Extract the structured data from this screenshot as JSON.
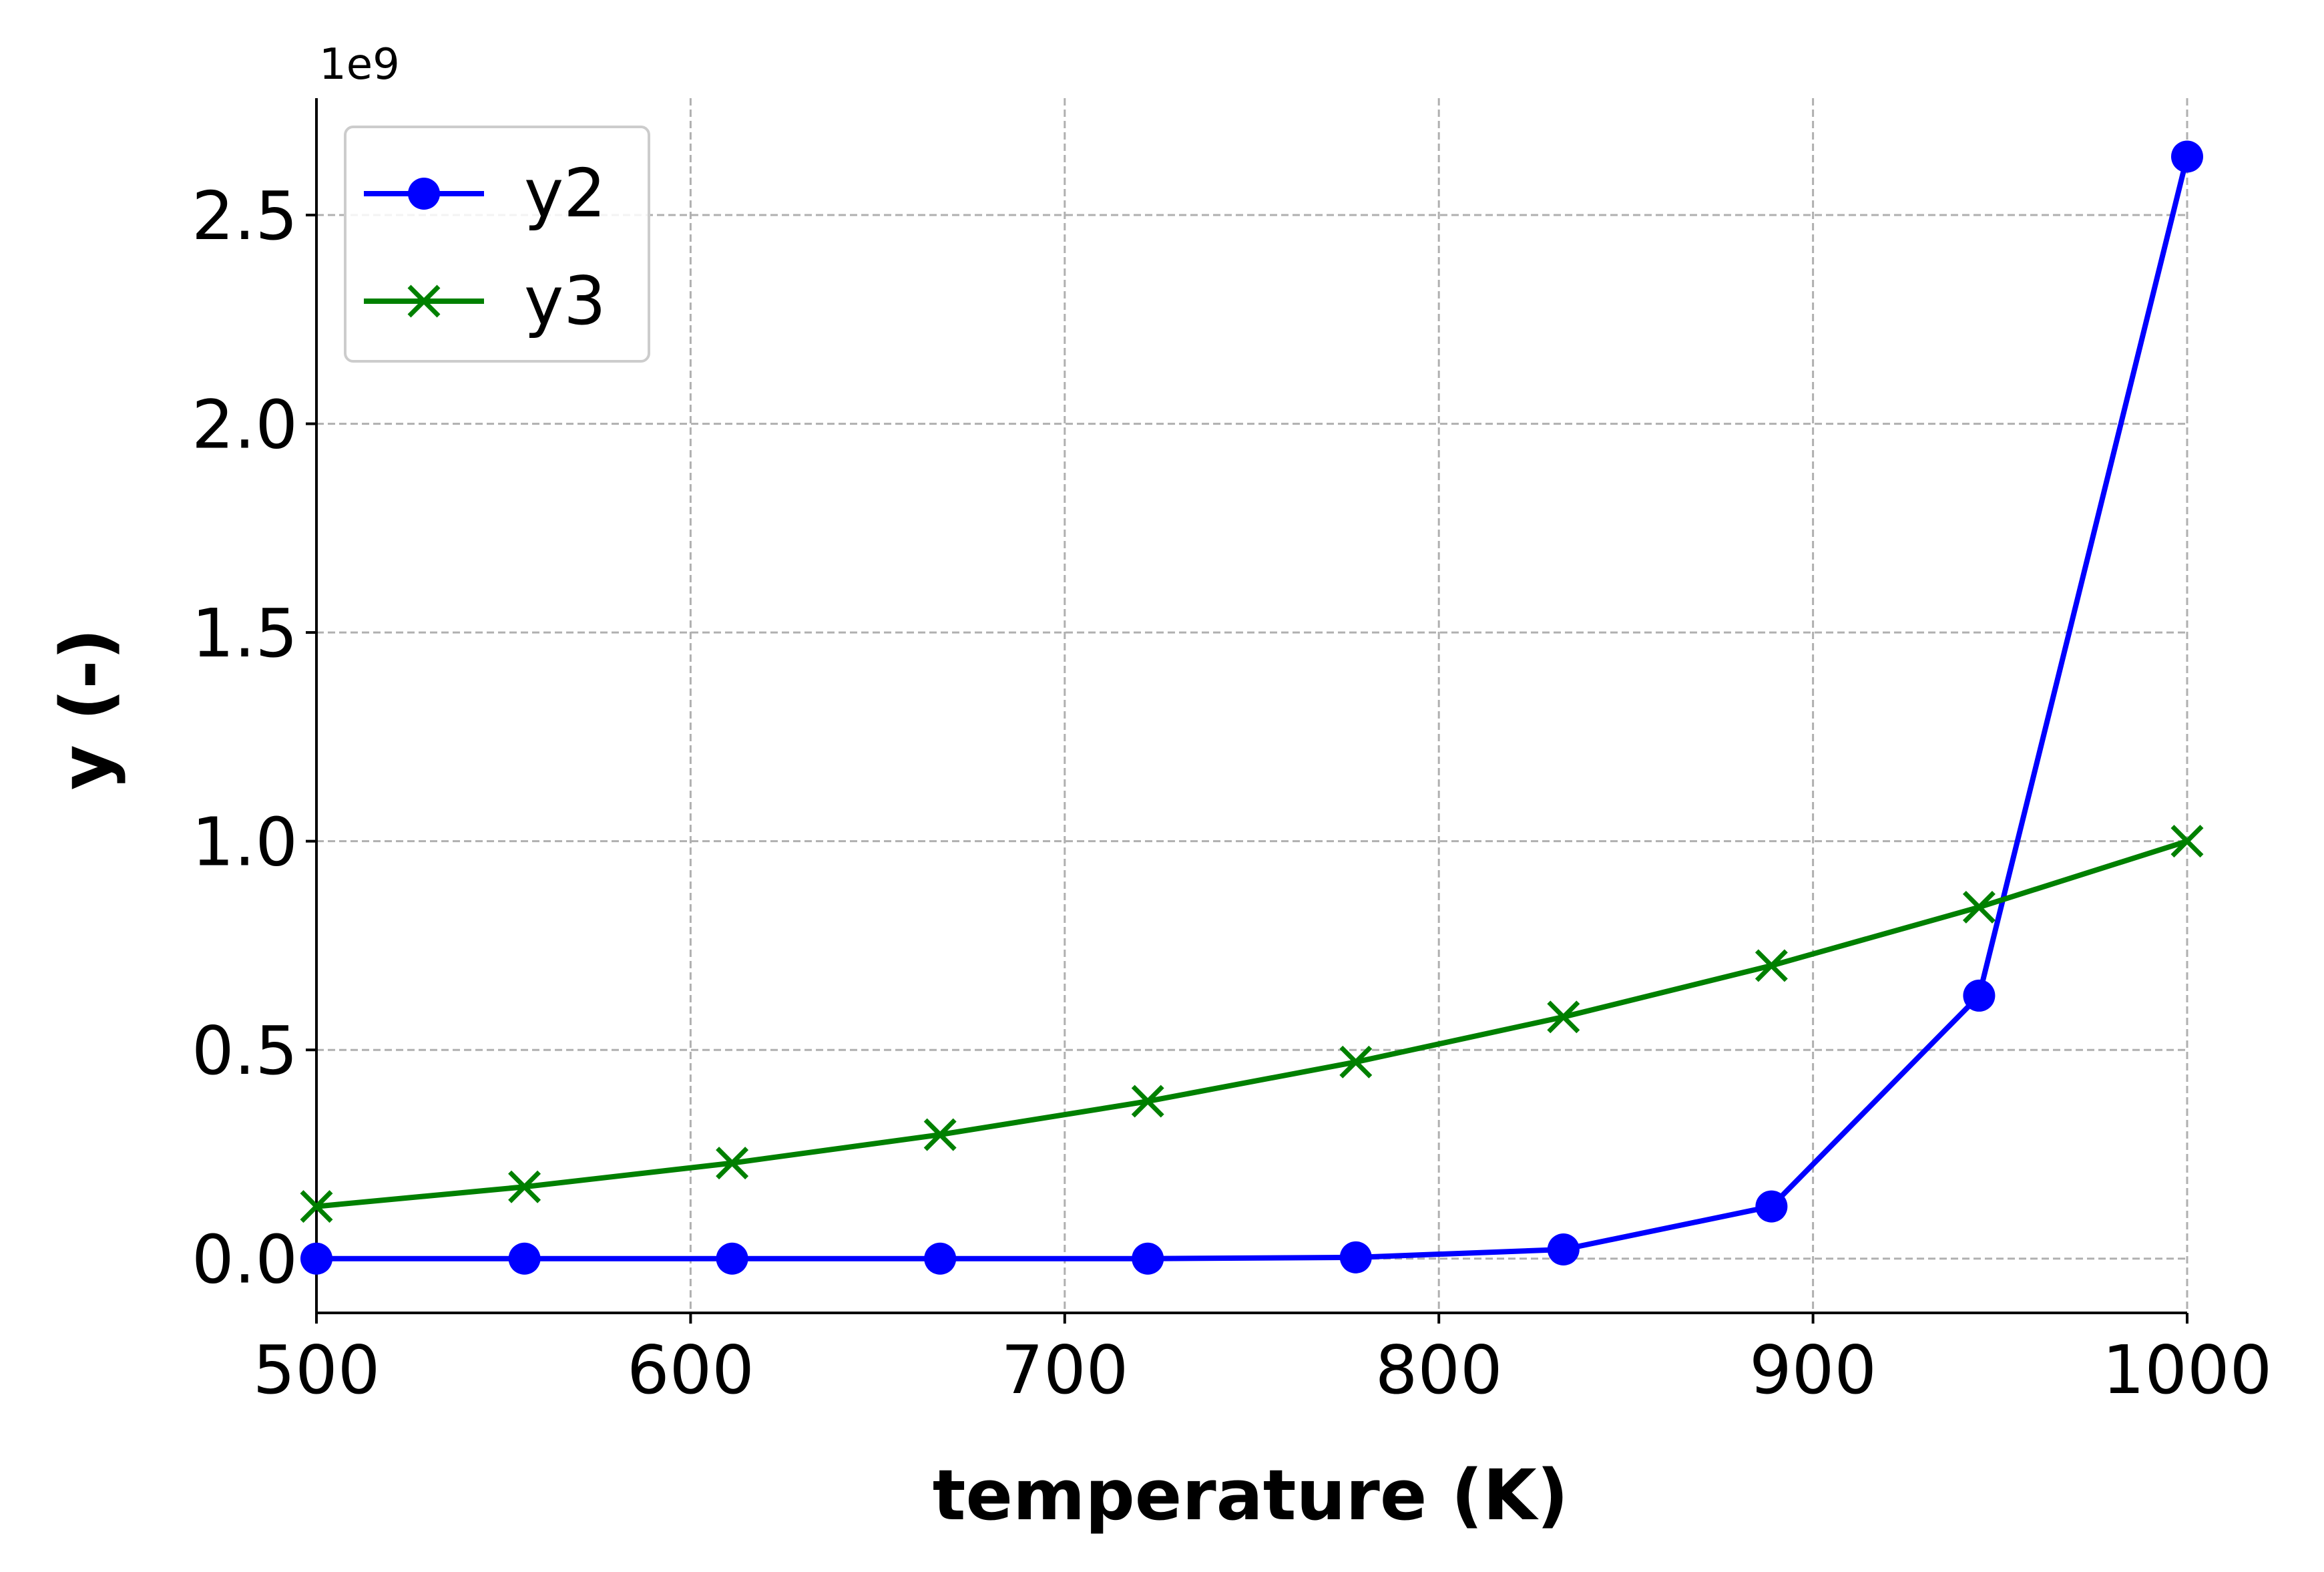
{
  "chart_data": {
    "type": "line",
    "title": "",
    "xlabel": "temperature (K)",
    "ylabel": "y (-)",
    "y_offset_label": "1e9",
    "xlim": [
      500,
      1000
    ],
    "ylim": [
      -0.13,
      2.78
    ],
    "xticks": [
      500,
      600,
      700,
      800,
      900,
      1000
    ],
    "xtick_labels": [
      "500",
      "600",
      "700",
      "800",
      "900",
      "1000"
    ],
    "yticks": [
      0.0,
      0.5,
      1.0,
      1.5,
      2.0,
      2.5
    ],
    "ytick_labels": [
      "0.0",
      "0.5",
      "1.0",
      "1.5",
      "2.0",
      "2.5"
    ],
    "grid": true,
    "legend_position": "top-left",
    "x": [
      500,
      555.6,
      611.1,
      666.7,
      722.2,
      777.8,
      833.3,
      888.9,
      944.4,
      1000
    ],
    "series": [
      {
        "name": "y2",
        "color": "#0000ff",
        "marker": "circle",
        "values": [
          0.0,
          0.0,
          0.0,
          0.0,
          0.0,
          0.003,
          0.022,
          0.125,
          0.63,
          2.64
        ]
      },
      {
        "name": "y3",
        "color": "#008000",
        "marker": "x",
        "values": [
          0.125,
          0.172,
          0.229,
          0.297,
          0.377,
          0.471,
          0.579,
          0.702,
          0.842,
          1.0
        ]
      }
    ]
  }
}
